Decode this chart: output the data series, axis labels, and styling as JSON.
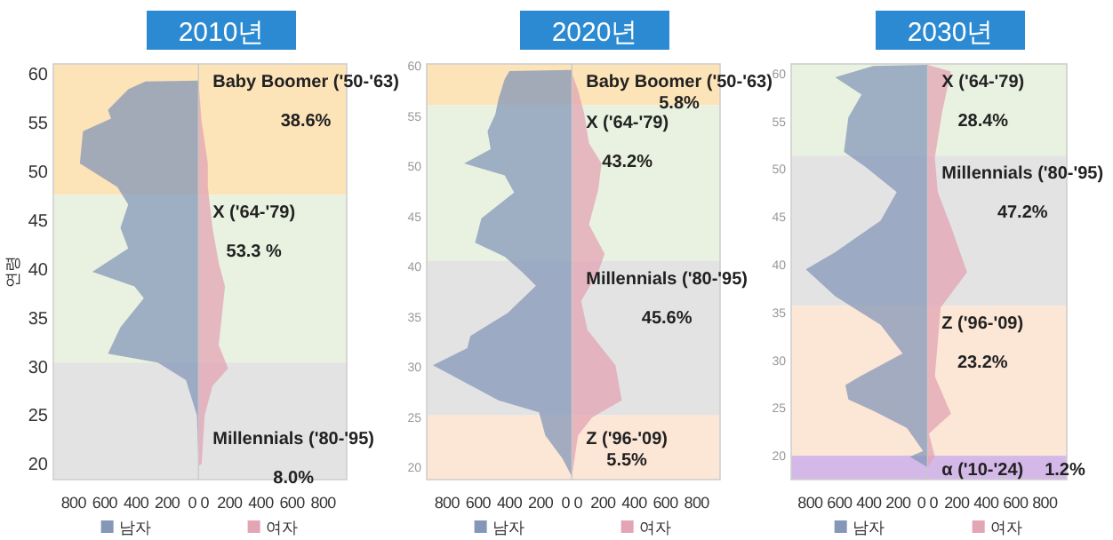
{
  "chart_data": [
    {
      "type": "area",
      "orientation": "horizontal",
      "title": "2010년",
      "ylabel": "연령",
      "legend": "bottom",
      "xlim": [
        -930,
        950
      ],
      "ylim": [
        18.4,
        61
      ],
      "yticks": [
        20,
        25,
        30,
        35,
        40,
        45,
        50,
        55,
        60
      ],
      "xticks": [
        {
          "value": -800,
          "label": "800"
        },
        {
          "value": -600,
          "label": "600"
        },
        {
          "value": -400,
          "label": "400"
        },
        {
          "value": -200,
          "label": "200"
        },
        {
          "value": 0,
          "label": "0 0"
        },
        {
          "value": 200,
          "label": "200"
        },
        {
          "value": 400,
          "label": "400"
        },
        {
          "value": 600,
          "label": "600"
        },
        {
          "value": 800,
          "label": "800"
        }
      ],
      "series": [
        {
          "name": "남자",
          "color": "#8497b8",
          "x": [
            20.2,
            25,
            28.6,
            30.4,
            31.3,
            34,
            37,
            38.2,
            39.7,
            42.1,
            44.2,
            46.6,
            48.4,
            50.8,
            54.1,
            55.4,
            56.3,
            58.4,
            59.2,
            59.3
          ],
          "values": [
            0,
            -10,
            -80,
            -260,
            -580,
            -500,
            -350,
            -410,
            -680,
            -450,
            -500,
            -450,
            -520,
            -760,
            -740,
            -560,
            -580,
            -450,
            -340,
            0
          ]
        },
        {
          "name": "여자",
          "color": "#e3a4b4",
          "x": [
            19.8,
            20,
            25,
            28,
            29.8,
            32.2,
            35.2,
            38.2,
            40.6,
            44.2,
            48.4,
            50.8,
            55.1,
            59.3
          ],
          "values": [
            0,
            20,
            40,
            90,
            190,
            130,
            150,
            170,
            130,
            90,
            60,
            60,
            20,
            0
          ]
        }
      ],
      "bands": [
        {
          "axis": "y",
          "from": 47.6,
          "to": 61,
          "label": "Baby Boomer ('50-'63)",
          "color": "#fbdca6"
        },
        {
          "axis": "y",
          "from": 30.4,
          "to": 47.6,
          "label": "X ('64-'79)",
          "color": "#e4efd9"
        },
        {
          "axis": "y",
          "from": 18.4,
          "to": 30.4,
          "label": "Millennials ('80-'95)",
          "color": "#dcdcdc"
        }
      ],
      "annotations": [
        "38.6%",
        "53.3 %",
        "8.0%"
      ]
    },
    {
      "type": "area",
      "orientation": "horizontal",
      "title": "2020년",
      "legend": "bottom",
      "xlim": [
        -930,
        950
      ],
      "ylim": [
        18.8,
        60.2
      ],
      "yticks": [
        20,
        25,
        30,
        35,
        40,
        45,
        50,
        55,
        60
      ],
      "xticks": [
        {
          "value": -800,
          "label": "800"
        },
        {
          "value": -600,
          "label": "600"
        },
        {
          "value": -400,
          "label": "400"
        },
        {
          "value": -200,
          "label": "200"
        },
        {
          "value": 0,
          "label": "0 0"
        },
        {
          "value": 200,
          "label": "200"
        },
        {
          "value": 400,
          "label": "400"
        },
        {
          "value": 600,
          "label": "600"
        },
        {
          "value": 800,
          "label": "800"
        }
      ],
      "series": [
        {
          "name": "남자",
          "color": "#8497b8",
          "x": [
            19.1,
            20.9,
            23.2,
            25.5,
            26.7,
            30.2,
            31.9,
            33.1,
            35.4,
            38.1,
            39.5,
            41,
            42.4,
            44.8,
            47.4,
            49.1,
            50.3,
            51.7,
            53.5,
            55.2,
            56.7,
            58.7,
            59.5,
            59.6
          ],
          "values": [
            0,
            -60,
            -170,
            -210,
            -470,
            -890,
            -670,
            -650,
            -410,
            -230,
            -320,
            -430,
            -620,
            -580,
            -370,
            -430,
            -690,
            -520,
            -540,
            -490,
            -470,
            -430,
            -400,
            0
          ]
        },
        {
          "name": "여자",
          "color": "#e3a4b4",
          "x": [
            19.1,
            23.2,
            25,
            26.7,
            30.2,
            33.7,
            36.6,
            39.5,
            41.3,
            44.2,
            47.7,
            50.3,
            52.3,
            55.2,
            57.6,
            59.3
          ],
          "values": [
            0,
            40,
            130,
            320,
            280,
            100,
            60,
            170,
            210,
            110,
            170,
            190,
            110,
            80,
            40,
            0
          ]
        }
      ],
      "bands": [
        {
          "axis": "y",
          "from": 56.1,
          "to": 60.2,
          "label": "Baby Boomer ('50-'63)",
          "color": "#fbdca6"
        },
        {
          "axis": "y",
          "from": 40.6,
          "to": 56.1,
          "label": "X ('64-'79)",
          "color": "#e4efd9"
        },
        {
          "axis": "y",
          "from": 25.2,
          "to": 40.6,
          "label": "Millennials ('80-'95)",
          "color": "#dcdcdc"
        },
        {
          "axis": "y",
          "from": 18.8,
          "to": 25.2,
          "label": "Z ('96-'09)",
          "color": "#fbe0cc"
        }
      ],
      "annotations": [
        "5.8%",
        "43.2%",
        "45.6%",
        "5.5%"
      ]
    },
    {
      "type": "area",
      "orientation": "horizontal",
      "title": "2030년",
      "legend": "bottom",
      "xlim": [
        -930,
        950
      ],
      "ylim": [
        17.5,
        61
      ],
      "yticks": [
        20,
        25,
        30,
        35,
        40,
        45,
        50,
        55,
        60
      ],
      "xticks": [
        {
          "value": -800,
          "label": "800"
        },
        {
          "value": -600,
          "label": "600"
        },
        {
          "value": -400,
          "label": "400"
        },
        {
          "value": -200,
          "label": "200"
        },
        {
          "value": 0,
          "label": "0 0"
        },
        {
          "value": 200,
          "label": "200"
        },
        {
          "value": 400,
          "label": "400"
        },
        {
          "value": 600,
          "label": "600"
        },
        {
          "value": 800,
          "label": "800"
        }
      ],
      "series": [
        {
          "name": "남자",
          "color": "#8497b8",
          "x": [
            18.8,
            19.9,
            20.5,
            22.9,
            24.7,
            25.9,
            27.4,
            28.3,
            29.2,
            30.7,
            33.7,
            36.7,
            39.5,
            41.3,
            44.6,
            47.6,
            50.3,
            51.8,
            55.4,
            57.8,
            59.6,
            60.8,
            60.9
          ],
          "values": [
            0,
            -120,
            -30,
            -140,
            -370,
            -540,
            -560,
            -460,
            -350,
            -170,
            -320,
            -630,
            -830,
            -630,
            -320,
            -210,
            -430,
            -570,
            -540,
            -450,
            -630,
            -370,
            0
          ]
        },
        {
          "name": "여자",
          "color": "#e3a4b4",
          "x": [
            18.8,
            19.9,
            22.3,
            24.4,
            28.3,
            31.9,
            35.5,
            39.2,
            44,
            47.6,
            51.2,
            56,
            60.2,
            60.9
          ],
          "values": [
            0,
            50,
            10,
            160,
            50,
            70,
            90,
            270,
            160,
            70,
            50,
            100,
            160,
            0
          ]
        }
      ],
      "bands": [
        {
          "axis": "y",
          "from": 51.4,
          "to": 61,
          "label": "X ('64-'79)",
          "color": "#e4efd9"
        },
        {
          "axis": "y",
          "from": 35.7,
          "to": 51.4,
          "label": "Millennials ('80-'95)",
          "color": "#dcdcdc"
        },
        {
          "axis": "y",
          "from": 20,
          "to": 35.7,
          "label": "Z ('96-'09)",
          "color": "#fbe0cc"
        },
        {
          "axis": "y",
          "from": 17.5,
          "to": 20,
          "label": "α ('10-'24)",
          "color": "#c9a6e2"
        }
      ],
      "annotations": [
        "28.4%",
        "47.2%",
        "23.2%",
        "1.2%"
      ]
    }
  ]
}
